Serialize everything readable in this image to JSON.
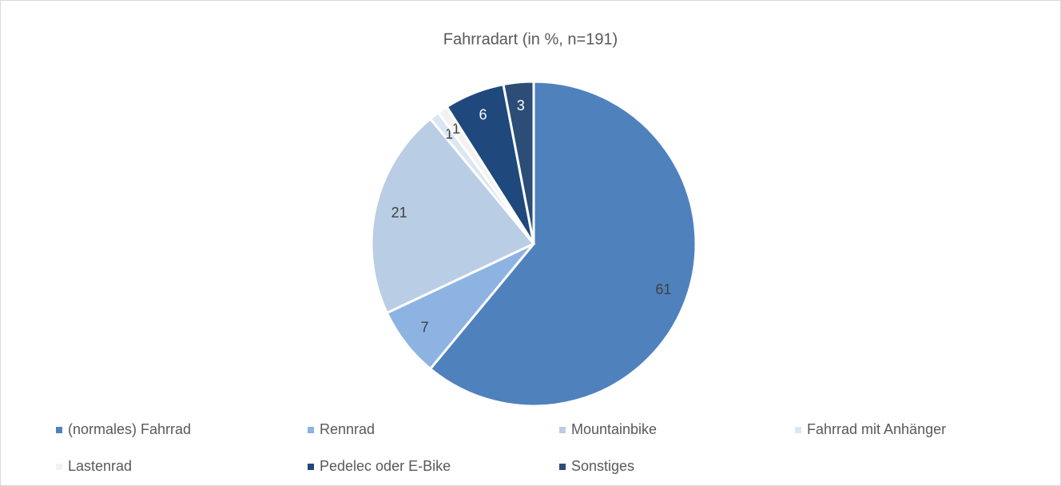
{
  "chart_data": {
    "type": "pie",
    "title": "Fahrradart (in %, n=191)",
    "categories": [
      "(normales) Fahrrad",
      "Rennrad",
      "Mountainbike",
      "Fahrrad mit Anhänger",
      "Lastenrad",
      "Pedelec oder E-Bike",
      "Sonstiges"
    ],
    "values": [
      61,
      7,
      21,
      1,
      1,
      6,
      3
    ],
    "colors": [
      "#4f81bd",
      "#8db3e2",
      "#b9cde5",
      "#dce6f2",
      "#f2f2f2",
      "#1f497d",
      "#2c4d75"
    ],
    "legend": "bottom"
  }
}
